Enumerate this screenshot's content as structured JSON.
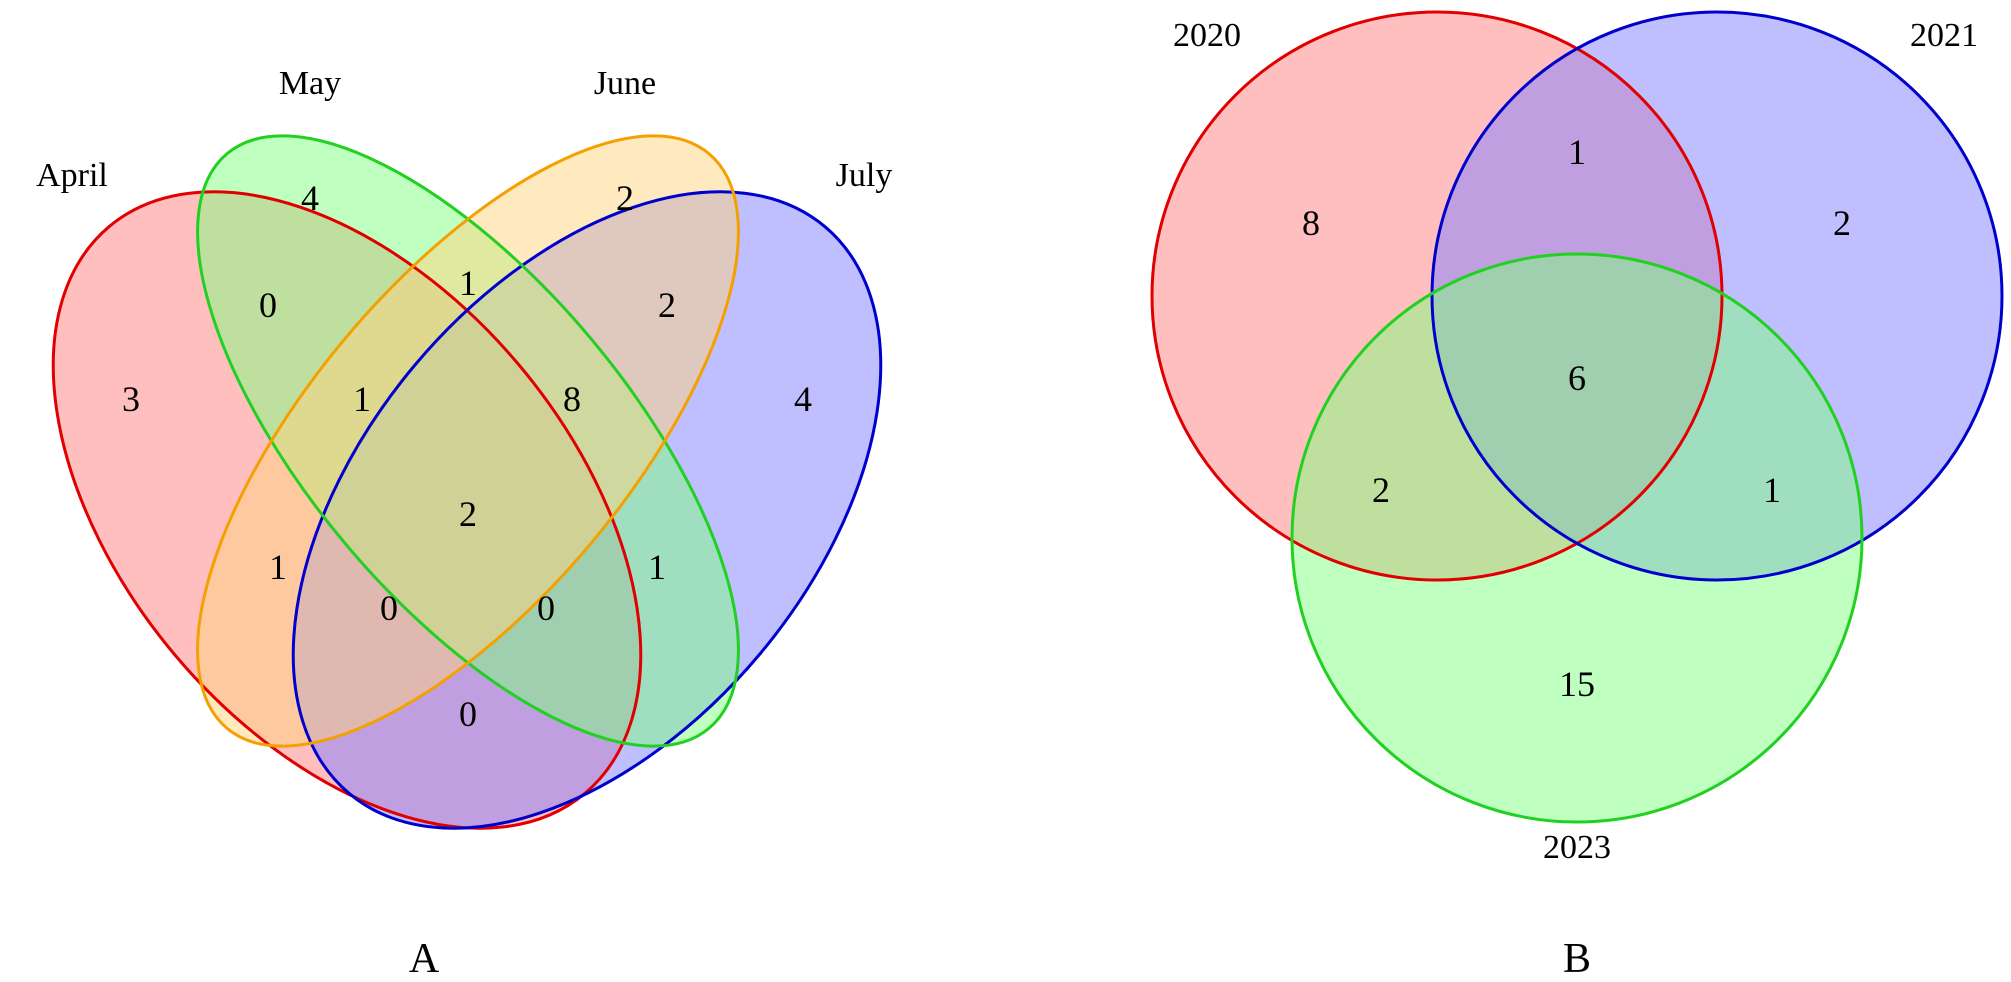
{
  "panel_a": {
    "panel_label": "A",
    "sets": [
      {
        "label": "April",
        "fill": "#FF7F7F",
        "stroke": "#E00000"
      },
      {
        "label": "May",
        "fill": "#7FFF7F",
        "stroke": "#22D022"
      },
      {
        "label": "June",
        "fill": "#FFD37F",
        "stroke": "#F4A000"
      },
      {
        "label": "July",
        "fill": "#7F7FFF",
        "stroke": "#0000CC"
      }
    ],
    "regions": {
      "april_only": "3",
      "may_only": "4",
      "june_only": "2",
      "july_only": "4",
      "april_may": "0",
      "may_june": "1",
      "june_july": "2",
      "april_may_june": "1",
      "may_june_july": "8",
      "all_four": "2",
      "april_june": "1",
      "may_july": "1",
      "april_june_july": "0",
      "april_may_july": "0",
      "april_july": "0"
    }
  },
  "panel_b": {
    "panel_label": "B",
    "sets": [
      {
        "label": "2020",
        "fill": "#FF7F7F",
        "stroke": "#E00000"
      },
      {
        "label": "2021",
        "fill": "#7F7FFF",
        "stroke": "#0000CC"
      },
      {
        "label": "2023",
        "fill": "#7FFF7F",
        "stroke": "#22D022"
      }
    ],
    "regions": {
      "y2020_only": "8",
      "y2021_only": "2",
      "y2023_only": "15",
      "y2020_y2021": "1",
      "y2020_y2023": "2",
      "y2021_y2023": "1",
      "all_three": "6"
    }
  }
}
